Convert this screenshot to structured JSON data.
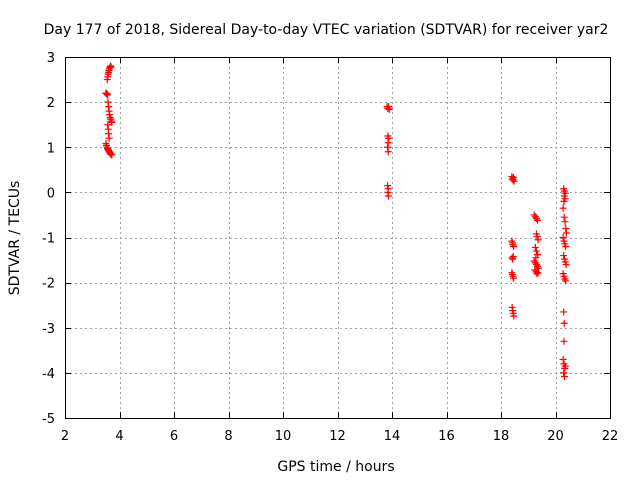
{
  "chart_data": {
    "type": "scatter",
    "title": "Day 177 of 2018, Sidereal Day-to-day VTEC variation (SDTVAR) for receiver yar2",
    "xlabel": "GPS time / hours",
    "ylabel": "SDTVAR / TECUs",
    "xlim": [
      2,
      22
    ],
    "ylim": [
      -5,
      3
    ],
    "xticks": [
      2,
      4,
      6,
      8,
      10,
      12,
      14,
      16,
      18,
      20,
      22
    ],
    "yticks": [
      -5,
      -4,
      -3,
      -2,
      -1,
      0,
      1,
      2,
      3
    ],
    "xtick_labels": [
      "2",
      "4",
      "6",
      "8",
      "10",
      "12",
      "14",
      "16",
      "18",
      "20",
      "22"
    ],
    "ytick_labels": [
      "-5",
      "-4",
      "-3",
      "-2",
      "-1",
      "0",
      "1",
      "2",
      "3"
    ],
    "grid": true,
    "marker": "plus",
    "color": "#ff0000",
    "series": [
      {
        "name": "SDTVAR",
        "points": [
          [
            3.55,
            2.5
          ],
          [
            3.57,
            2.56
          ],
          [
            3.58,
            2.62
          ],
          [
            3.6,
            2.66
          ],
          [
            3.61,
            2.7
          ],
          [
            3.63,
            2.74
          ],
          [
            3.65,
            2.77
          ],
          [
            3.67,
            2.8
          ],
          [
            3.69,
            2.78
          ],
          [
            3.5,
            2.2
          ],
          [
            3.52,
            2.19
          ],
          [
            3.54,
            2.18
          ],
          [
            3.56,
            2.16
          ],
          [
            3.58,
            2.0
          ],
          [
            3.6,
            1.9
          ],
          [
            3.62,
            1.8
          ],
          [
            3.64,
            1.72
          ],
          [
            3.66,
            1.66
          ],
          [
            3.68,
            1.62
          ],
          [
            3.7,
            1.58
          ],
          [
            3.72,
            1.55
          ],
          [
            3.57,
            1.5
          ],
          [
            3.59,
            1.4
          ],
          [
            3.6,
            1.3
          ],
          [
            3.62,
            1.2
          ],
          [
            3.5,
            1.08
          ],
          [
            3.52,
            1.04
          ],
          [
            3.54,
            1.0
          ],
          [
            3.56,
            0.97
          ],
          [
            3.58,
            0.95
          ],
          [
            3.6,
            0.93
          ],
          [
            3.62,
            0.91
          ],
          [
            3.64,
            0.89
          ],
          [
            3.66,
            0.87
          ],
          [
            3.68,
            0.85
          ],
          [
            3.7,
            0.84
          ],
          [
            3.72,
            0.83
          ],
          [
            13.82,
            1.9
          ],
          [
            13.85,
            1.86
          ],
          [
            13.88,
            1.9
          ],
          [
            13.9,
            1.84
          ],
          [
            13.85,
            1.25
          ],
          [
            13.88,
            1.2
          ],
          [
            13.86,
            1.1
          ],
          [
            13.84,
            1.0
          ],
          [
            13.86,
            0.9
          ],
          [
            13.84,
            0.15
          ],
          [
            13.86,
            0.08
          ],
          [
            13.85,
            0.0
          ],
          [
            13.87,
            -0.08
          ],
          [
            18.4,
            0.35
          ],
          [
            18.42,
            0.3
          ],
          [
            18.44,
            0.28
          ],
          [
            18.46,
            0.33
          ],
          [
            18.48,
            0.25
          ],
          [
            18.4,
            -1.08
          ],
          [
            18.42,
            -1.12
          ],
          [
            18.44,
            -1.16
          ],
          [
            18.46,
            -1.2
          ],
          [
            18.41,
            -1.45
          ],
          [
            18.43,
            -1.48
          ],
          [
            18.45,
            -1.42
          ],
          [
            18.4,
            -1.78
          ],
          [
            18.42,
            -1.82
          ],
          [
            18.44,
            -1.86
          ],
          [
            18.46,
            -1.9
          ],
          [
            18.41,
            -2.55
          ],
          [
            18.43,
            -2.62
          ],
          [
            18.45,
            -2.68
          ],
          [
            18.47,
            -2.74
          ],
          [
            19.22,
            -0.5
          ],
          [
            19.26,
            -0.54
          ],
          [
            19.3,
            -0.58
          ],
          [
            19.34,
            -0.62
          ],
          [
            19.3,
            -0.92
          ],
          [
            19.33,
            -0.98
          ],
          [
            19.36,
            -1.05
          ],
          [
            19.26,
            -1.22
          ],
          [
            19.3,
            -1.3
          ],
          [
            19.34,
            -1.38
          ],
          [
            19.28,
            -1.45
          ],
          [
            19.22,
            -1.52
          ],
          [
            19.26,
            -1.56
          ],
          [
            19.3,
            -1.6
          ],
          [
            19.34,
            -1.64
          ],
          [
            19.38,
            -1.68
          ],
          [
            19.24,
            -1.72
          ],
          [
            19.28,
            -1.76
          ],
          [
            19.32,
            -1.8
          ],
          [
            19.36,
            -1.78
          ],
          [
            20.3,
            0.08
          ],
          [
            20.33,
            0.03
          ],
          [
            20.36,
            -0.02
          ],
          [
            20.32,
            -0.08
          ],
          [
            20.35,
            -0.14
          ],
          [
            20.31,
            -0.2
          ],
          [
            20.28,
            -0.35
          ],
          [
            20.32,
            -0.55
          ],
          [
            20.35,
            -0.65
          ],
          [
            20.38,
            -0.8
          ],
          [
            20.4,
            -0.9
          ],
          [
            20.28,
            -1.0
          ],
          [
            20.31,
            -1.08
          ],
          [
            20.34,
            -1.14
          ],
          [
            20.37,
            -1.2
          ],
          [
            20.3,
            -1.4
          ],
          [
            20.33,
            -1.48
          ],
          [
            20.36,
            -1.54
          ],
          [
            20.39,
            -1.6
          ],
          [
            20.28,
            -1.8
          ],
          [
            20.31,
            -1.86
          ],
          [
            20.34,
            -1.92
          ],
          [
            20.37,
            -1.96
          ],
          [
            20.3,
            -2.65
          ],
          [
            20.32,
            -2.9
          ],
          [
            20.31,
            -3.3
          ],
          [
            20.28,
            -3.7
          ],
          [
            20.31,
            -3.8
          ],
          [
            20.34,
            -3.9
          ],
          [
            20.3,
            -4.0
          ],
          [
            20.33,
            -4.08
          ],
          [
            20.36,
            -3.85
          ]
        ]
      }
    ]
  }
}
